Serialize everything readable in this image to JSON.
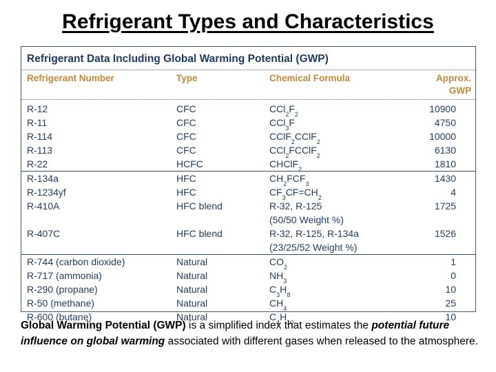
{
  "slide": {
    "title": "Refrigerant Types and Characteristics"
  },
  "table": {
    "title": "Refrigerant Data Including Global Warming Potential (GWP)",
    "columns": [
      "Refrigerant Number",
      "Type",
      "Chemical Formula",
      "Approx. GWP"
    ],
    "rows": [
      {
        "number": "R-12",
        "type": "CFC",
        "formula": "CCl~2~F~2~",
        "gwp": "10900"
      },
      {
        "number": "R-11",
        "type": "CFC",
        "formula": "CCl~3~F",
        "gwp": "4750"
      },
      {
        "number": "R-114",
        "type": "CFC",
        "formula": "CClF~2~CClF~2~",
        "gwp": "10000"
      },
      {
        "number": "R-113",
        "type": "CFC",
        "formula": "CCl~2~FCClF~2~",
        "gwp": "6130"
      },
      {
        "number": "R-22",
        "type": "HCFC",
        "formula": "CHClF~2~",
        "gwp": "1810"
      },
      {
        "number": "R-134a",
        "type": "HFC",
        "formula": "CH~2~FCF~3~",
        "gwp": "1430",
        "group_start": true
      },
      {
        "number": "R-1234yf",
        "type": "HFC",
        "formula": "CF~3~CF=CH~2~",
        "gwp": "4"
      },
      {
        "number": "R-410A",
        "type": "HFC blend",
        "formula": "R-32, R-125\n(50/50 Weight %)",
        "gwp": "1725"
      },
      {
        "number": "R-407C",
        "type": "HFC blend",
        "formula": "R-32, R-125, R-134a\n(23/25/52 Weight %)",
        "gwp": "1526"
      },
      {
        "number": "R-744 (carbon dioxide)",
        "type": "Natural",
        "formula": "CO~2~",
        "gwp": "1",
        "group_start": true
      },
      {
        "number": "R-717 (ammonia)",
        "type": "Natural",
        "formula": "NH~3~",
        "gwp": "0"
      },
      {
        "number": "R-290 (propane)",
        "type": "Natural",
        "formula": "C~3~H~8~",
        "gwp": "10"
      },
      {
        "number": "R-50 (methane)",
        "type": "Natural",
        "formula": "CH~4~",
        "gwp": "25"
      },
      {
        "number": "R-600 (butane)",
        "type": "Natural",
        "formula": "C~4~H~10~",
        "gwp": "10"
      }
    ]
  },
  "footnote": {
    "segments": [
      {
        "text": "Global Warming Potential (GWP)",
        "style": "b"
      },
      {
        "text": " is a simplified index that estimates the ",
        "style": ""
      },
      {
        "text": "potential future influence on global warming",
        "style": "bi"
      },
      {
        "text": " associated with different gases when released to the atmosphere.",
        "style": ""
      }
    ]
  },
  "colors": {
    "table_text": "#223C60",
    "table_title_text": "#1B3A5F",
    "column_header_text": "#C1883A",
    "table_border": "#40577A",
    "group_separator": "#2F4C77",
    "slide_title_text": "#000000"
  }
}
